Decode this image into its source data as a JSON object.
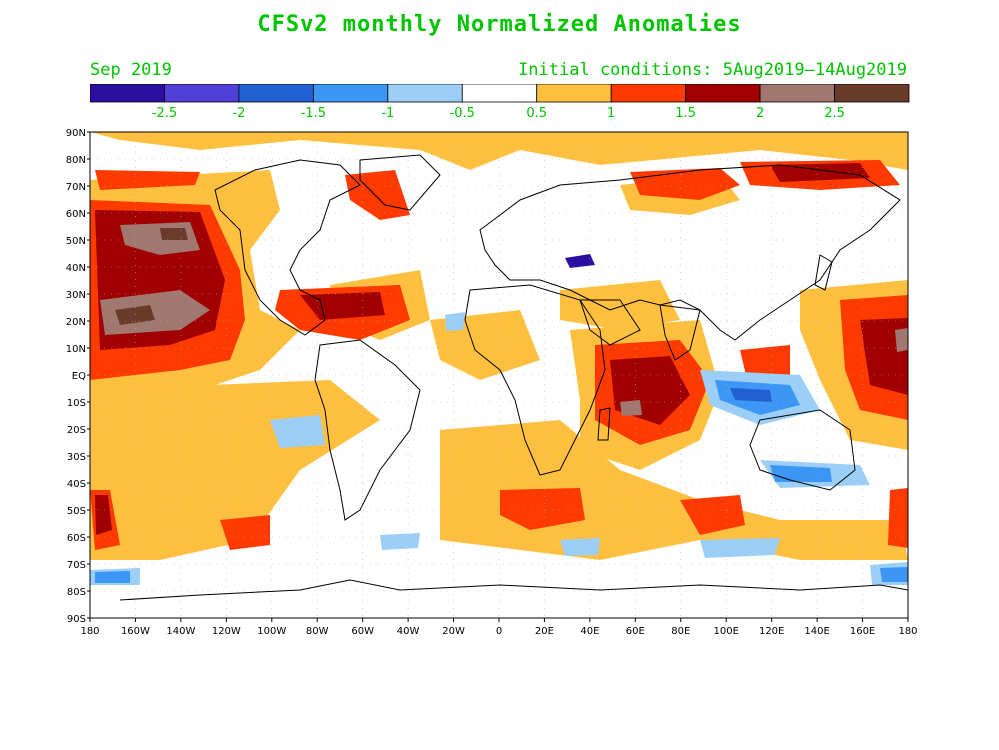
{
  "title": "CFSv2 monthly Normalized Anomalies",
  "month": "Sep 2019",
  "initial_conditions": "Initial conditions: 5Aug2019—14Aug2019",
  "colorbar": {
    "colors": [
      "#2a0fa0",
      "#5040d8",
      "#2060d0",
      "#3c96f4",
      "#9ccff8",
      "#ffffff",
      "#ffc040",
      "#ff3a00",
      "#a00000",
      "#a07870",
      "#6a3a2a"
    ],
    "labels": [
      "-2.5",
      "-2",
      "-1.5",
      "-1",
      "-0.5",
      "0.5",
      "1",
      "1.5",
      "2",
      "2.5"
    ]
  },
  "axes": {
    "lat_labels": [
      "90N",
      "80N",
      "70N",
      "60N",
      "50N",
      "40N",
      "30N",
      "20N",
      "10N",
      "EQ",
      "10S",
      "20S",
      "30S",
      "40S",
      "50S",
      "60S",
      "70S",
      "80S",
      "90S"
    ],
    "lon_labels": [
      "180",
      "160W",
      "140W",
      "120W",
      "100W",
      "80W",
      "60W",
      "40W",
      "20W",
      "0",
      "20E",
      "40E",
      "60E",
      "80E",
      "100E",
      "120E",
      "140E",
      "160E",
      "180"
    ]
  }
}
